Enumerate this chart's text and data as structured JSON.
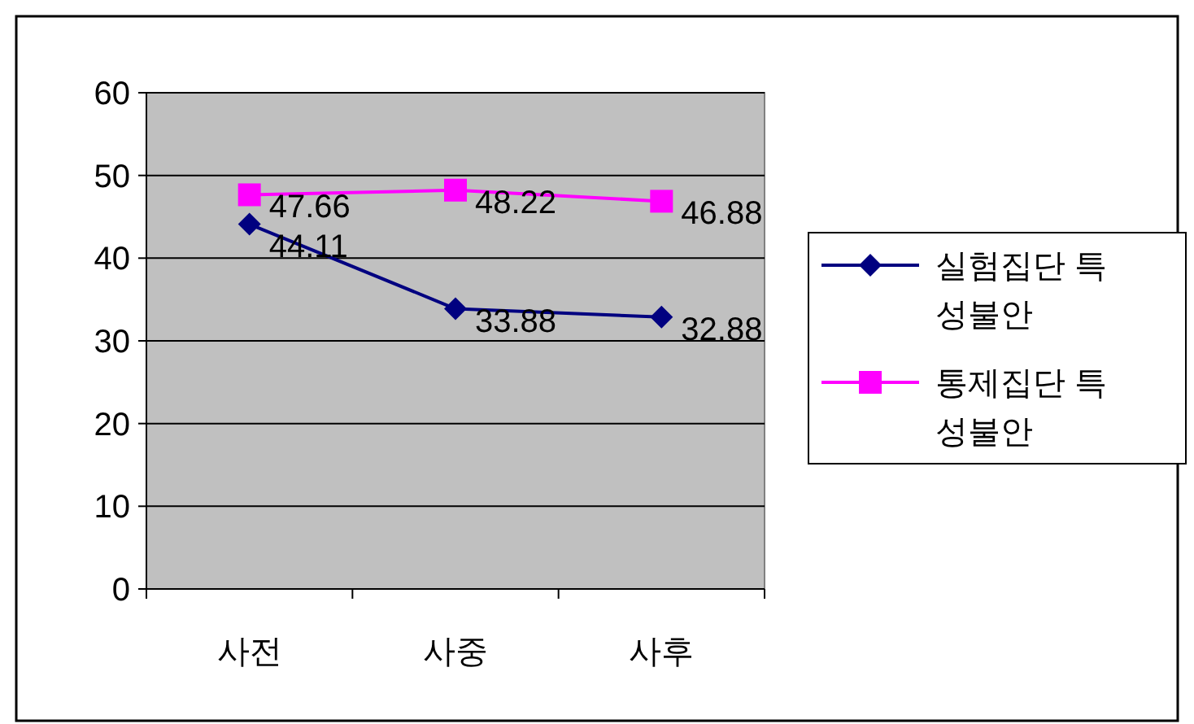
{
  "chart_data": {
    "type": "line",
    "categories": [
      "사전",
      "사중",
      "사후"
    ],
    "series": [
      {
        "name": "실험집단 특성불안",
        "color": "#000080",
        "values": [
          44.11,
          33.88,
          32.88
        ],
        "marker": "diamond"
      },
      {
        "name": "통제집단 특성불안",
        "color": "#ff00ff",
        "values": [
          47.66,
          48.22,
          46.88
        ],
        "marker": "square"
      }
    ],
    "ylim": [
      0,
      60
    ],
    "yticks": [
      0,
      10,
      20,
      30,
      40,
      50,
      60
    ],
    "grid": "y",
    "legend": "right",
    "data_labels": true
  }
}
